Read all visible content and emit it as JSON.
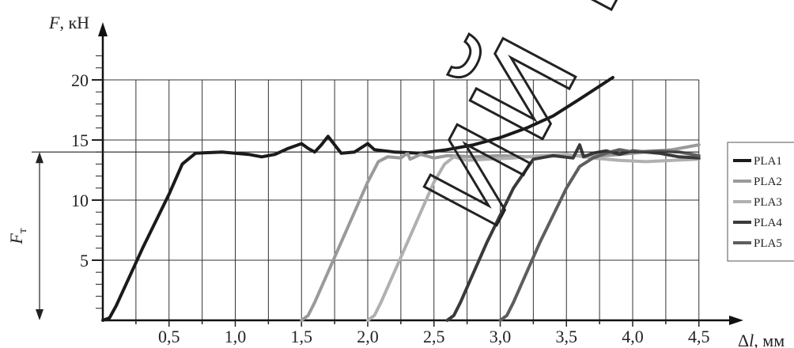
{
  "chart_data": {
    "type": "line",
    "xlabel": "Δl, мм",
    "ylabel": "F, кН",
    "ft_label": "F",
    "ft_label_sub": "т",
    "xlim": [
      -0.05,
      4.5
    ],
    "ylim": [
      0,
      23
    ],
    "grid": true,
    "x_ticks": [
      0.5,
      1.0,
      1.5,
      2.0,
      2.5,
      3.0,
      3.5,
      4.0,
      4.5
    ],
    "x_tick_labels": [
      "0,5",
      "1,0",
      "1,5",
      "2,0",
      "2,5",
      "3,0",
      "3,5",
      "4,0",
      "4,5"
    ],
    "y_ticks": [
      5,
      10,
      15,
      20
    ],
    "y_tick_labels": [
      "5",
      "10",
      "15",
      "20"
    ],
    "ft_value": 14,
    "legend_position": "right",
    "watermark": "ий Бар",
    "series": [
      {
        "name": "PLA1",
        "color": "#1a1a1a",
        "points": [
          [
            0.0,
            0
          ],
          [
            0.05,
            0.2
          ],
          [
            0.1,
            1.2
          ],
          [
            0.3,
            6
          ],
          [
            0.5,
            10.5
          ],
          [
            0.6,
            13
          ],
          [
            0.7,
            13.9
          ],
          [
            0.9,
            14
          ],
          [
            1.1,
            13.8
          ],
          [
            1.2,
            13.6
          ],
          [
            1.3,
            13.8
          ],
          [
            1.4,
            14.3
          ],
          [
            1.5,
            14.7
          ],
          [
            1.55,
            14.3
          ],
          [
            1.6,
            14.0
          ],
          [
            1.65,
            14.6
          ],
          [
            1.7,
            15.3
          ],
          [
            1.75,
            14.6
          ],
          [
            1.8,
            13.9
          ],
          [
            1.9,
            14.0
          ],
          [
            2.0,
            14.7
          ],
          [
            2.05,
            14.2
          ],
          [
            2.2,
            14.0
          ],
          [
            2.4,
            13.9
          ],
          [
            2.6,
            14.2
          ],
          [
            2.8,
            14.6
          ],
          [
            3.0,
            15.2
          ],
          [
            3.2,
            16.0
          ],
          [
            3.4,
            17.0
          ],
          [
            3.6,
            18.4
          ],
          [
            3.85,
            20.2
          ]
        ]
      },
      {
        "name": "PLA2",
        "color": "#9a9a9a",
        "points": [
          [
            1.5,
            0
          ],
          [
            1.55,
            0.4
          ],
          [
            1.6,
            1.5
          ],
          [
            1.8,
            6.5
          ],
          [
            2.0,
            11.5
          ],
          [
            2.08,
            13.2
          ],
          [
            2.15,
            13.6
          ],
          [
            2.25,
            13.5
          ],
          [
            2.3,
            13.9
          ],
          [
            2.32,
            13.4
          ],
          [
            2.4,
            13.8
          ],
          [
            2.5,
            13.5
          ],
          [
            2.6,
            13.7
          ],
          [
            2.8,
            13.6
          ],
          [
            3.0,
            13.7
          ],
          [
            3.2,
            13.6
          ],
          [
            3.5,
            13.7
          ],
          [
            3.8,
            13.7
          ],
          [
            4.0,
            13.9
          ],
          [
            4.3,
            14.2
          ],
          [
            4.5,
            14.6
          ]
        ]
      },
      {
        "name": "PLA3",
        "color": "#b0b0b0",
        "points": [
          [
            2.0,
            0
          ],
          [
            2.05,
            0.4
          ],
          [
            2.1,
            1.5
          ],
          [
            2.3,
            6.5
          ],
          [
            2.5,
            11.5
          ],
          [
            2.58,
            13.0
          ],
          [
            2.65,
            13.6
          ],
          [
            2.75,
            13.3
          ],
          [
            2.9,
            13.4
          ],
          [
            3.1,
            13.5
          ],
          [
            3.3,
            13.7
          ],
          [
            3.5,
            13.8
          ],
          [
            3.7,
            13.5
          ],
          [
            3.9,
            13.3
          ],
          [
            4.1,
            13.2
          ],
          [
            4.3,
            13.3
          ],
          [
            4.5,
            13.4
          ]
        ]
      },
      {
        "name": "PLA4",
        "color": "#3a3a3a",
        "points": [
          [
            2.6,
            0
          ],
          [
            2.65,
            0.4
          ],
          [
            2.7,
            1.5
          ],
          [
            2.9,
            6.5
          ],
          [
            3.1,
            11
          ],
          [
            3.25,
            13.4
          ],
          [
            3.4,
            13.7
          ],
          [
            3.55,
            13.5
          ],
          [
            3.6,
            14.6
          ],
          [
            3.63,
            13.6
          ],
          [
            3.7,
            13.9
          ],
          [
            3.8,
            14.1
          ],
          [
            3.9,
            13.8
          ],
          [
            4.0,
            14.1
          ],
          [
            4.2,
            13.9
          ],
          [
            4.35,
            13.6
          ],
          [
            4.5,
            13.5
          ]
        ]
      },
      {
        "name": "PLA5",
        "color": "#5e5e5e",
        "points": [
          [
            3.0,
            0
          ],
          [
            3.05,
            0.4
          ],
          [
            3.1,
            1.5
          ],
          [
            3.3,
            6.5
          ],
          [
            3.5,
            11
          ],
          [
            3.6,
            12.8
          ],
          [
            3.7,
            13.5
          ],
          [
            3.8,
            13.9
          ],
          [
            3.9,
            14.2
          ],
          [
            4.0,
            14.0
          ],
          [
            4.2,
            14.1
          ],
          [
            4.35,
            14.0
          ],
          [
            4.5,
            13.7
          ]
        ]
      }
    ]
  }
}
